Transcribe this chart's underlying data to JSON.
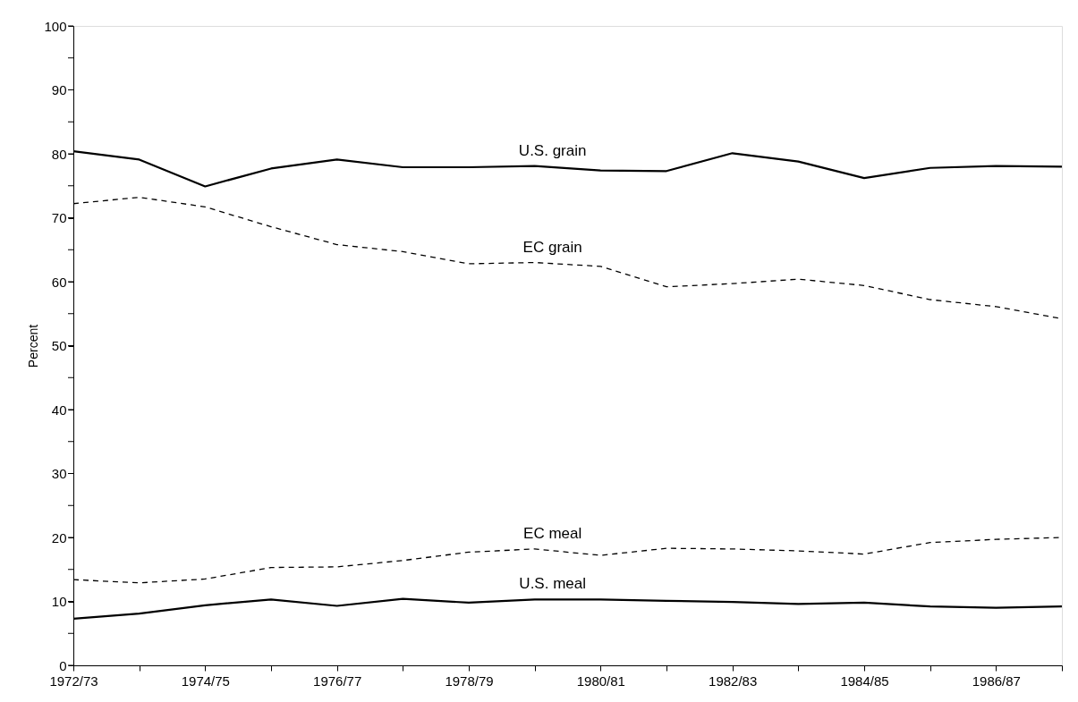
{
  "chart_data": {
    "type": "line",
    "ylabel": "Percent",
    "categories": [
      "1972/73",
      null,
      "1974/75",
      null,
      "1976/77",
      null,
      "1978/79",
      null,
      "1980/81",
      null,
      "1982/83",
      null,
      "1984/85",
      null,
      "1986/87",
      null
    ],
    "series": [
      {
        "name": "U.S. grain",
        "color": "#000000",
        "line_style": "solid",
        "values": [
          80.4,
          79.1,
          74.9,
          77.7,
          79.1,
          77.9,
          77.9,
          78.1,
          77.4,
          77.3,
          80.1,
          78.8,
          76.2,
          77.8,
          78.1,
          78.0
        ]
      },
      {
        "name": "EC grain",
        "color": "#000000",
        "line_style": "dashed",
        "values": [
          72.2,
          73.2,
          71.7,
          68.6,
          65.8,
          64.7,
          62.8,
          63.0,
          62.4,
          59.2,
          59.7,
          60.4,
          59.4,
          57.2,
          56.1,
          54.2
        ]
      },
      {
        "name": "EC meal",
        "color": "#000000",
        "line_style": "dashed",
        "values": [
          13.4,
          12.9,
          13.5,
          15.3,
          15.4,
          16.4,
          17.7,
          18.2,
          17.2,
          18.3,
          18.2,
          17.9,
          17.4,
          19.2,
          19.7,
          20.0
        ]
      },
      {
        "name": "U.S. meal",
        "color": "#000000",
        "line_style": "solid",
        "values": [
          7.3,
          8.1,
          9.4,
          10.3,
          9.3,
          10.4,
          9.8,
          10.3,
          10.3,
          10.1,
          9.9,
          9.6,
          9.8,
          9.2,
          9.0,
          9.2
        ]
      }
    ],
    "ylim": [
      0,
      100
    ],
    "yticks": [
      0,
      {
        "value": 5,
        "label": null
      },
      10,
      {
        "value": 15,
        "label": null
      },
      20,
      {
        "value": 25,
        "label": null
      },
      30,
      {
        "value": 35,
        "label": null
      },
      40,
      {
        "value": 45,
        "label": null
      },
      50,
      {
        "value": 55,
        "label": null
      },
      60,
      {
        "value": 65,
        "label": null
      },
      70,
      {
        "value": 75,
        "label": null
      },
      80,
      {
        "value": 85,
        "label": null
      },
      90,
      {
        "value": 95,
        "label": null
      },
      100
    ],
    "marker": "none"
  }
}
